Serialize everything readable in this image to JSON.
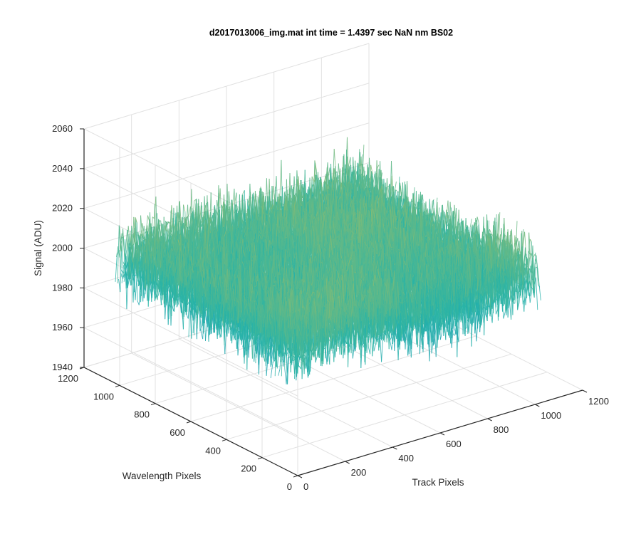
{
  "chart_data": {
    "type": "surface",
    "title": "d2017013006_img.mat int time = 1.4397 sec  NaN nm BS02",
    "xlabel": "Track Pixels",
    "ylabel": "Wavelength Pixels",
    "zlabel": "Signal (ADU)",
    "xlim": [
      0,
      1200
    ],
    "ylim": [
      0,
      1200
    ],
    "zlim": [
      1940,
      2060
    ],
    "x_ticks": [
      0,
      200,
      400,
      600,
      800,
      1000,
      1200
    ],
    "y_ticks": [
      0,
      200,
      400,
      600,
      800,
      1000,
      1200
    ],
    "z_ticks": [
      1940,
      1960,
      1980,
      2000,
      2020,
      2040,
      2060
    ],
    "x_tick_labels": [
      "0",
      "200",
      "400",
      "600",
      "800",
      "1000",
      "1200"
    ],
    "y_tick_labels": [
      "0",
      "200",
      "400",
      "600",
      "800",
      "1000",
      "1200"
    ],
    "z_tick_labels": [
      "1940",
      "1960",
      "1980",
      "2000",
      "2020",
      "2040",
      "2060"
    ],
    "surface_extent": {
      "x": [
        0,
        1024
      ],
      "y": [
        0,
        1024
      ]
    },
    "mean_signal": 2003,
    "signal_range": [
      1945,
      2050
    ],
    "grid": true,
    "colormap": "parula",
    "colors": {
      "low": "#1e78d0",
      "mid": "#26b4a8",
      "high": "#f2c43a",
      "axis": "#262626",
      "grid": "#e1e1e1"
    }
  }
}
